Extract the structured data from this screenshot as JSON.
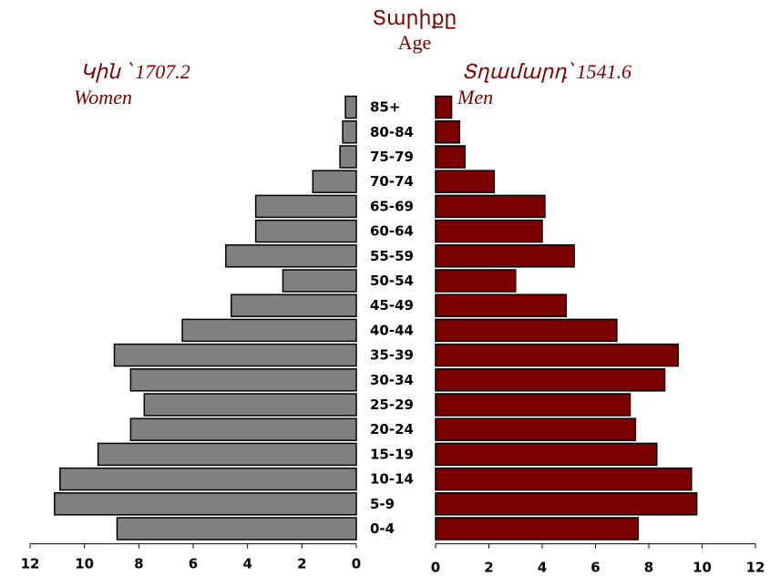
{
  "chart_data": {
    "type": "bar",
    "title": "Տարիքը",
    "subtitle": "Age",
    "categories": [
      "85+",
      "80-84",
      "75-79",
      "70-74",
      "65-69",
      "60-64",
      "55-59",
      "50-54",
      "45-49",
      "40-44",
      "35-39",
      "30-34",
      "25-29",
      "20-24",
      "15-19",
      "10-14",
      "5-9",
      "0-4"
    ],
    "series": [
      {
        "name": "Կին ՝ 1707.2",
        "name_en": "Women",
        "color": "#808080",
        "values": [
          0.4,
          0.5,
          0.6,
          1.6,
          3.7,
          3.7,
          4.8,
          2.7,
          4.6,
          6.4,
          8.9,
          8.3,
          7.8,
          8.3,
          9.5,
          10.9,
          11.1,
          8.8
        ]
      },
      {
        "name": "Տղամարդ՝ 1541.6",
        "name_en": "Men",
        "color": "#7b0000",
        "values": [
          0.6,
          0.9,
          1.1,
          2.2,
          4.1,
          4.0,
          5.2,
          3.0,
          4.9,
          6.8,
          9.1,
          8.6,
          7.3,
          7.5,
          8.3,
          9.6,
          9.8,
          7.6
        ]
      }
    ],
    "xlim": [
      0,
      12
    ],
    "xticks": [
      "0",
      "2",
      "4",
      "6",
      "8",
      "10",
      "12"
    ]
  }
}
